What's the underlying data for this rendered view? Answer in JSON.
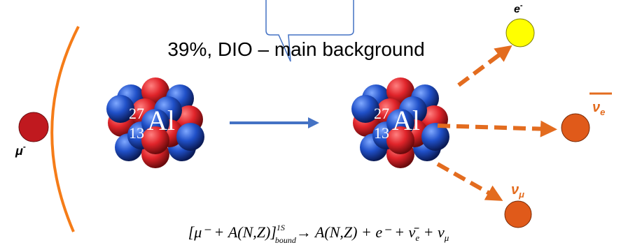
{
  "title": "39%, DIO – main background",
  "muon_label": {
    "symbol": "μ",
    "charge": "-"
  },
  "nucleus_left": {
    "mass": "27",
    "atomic": "13",
    "element": "Al"
  },
  "nucleus_right": {
    "mass": "27",
    "atomic": "13",
    "element": "Al"
  },
  "electron_label": {
    "symbol": "e",
    "charge": "-"
  },
  "antineutrino_label": {
    "symbol": "ν",
    "sub": "e"
  },
  "neutrino_label": {
    "symbol": "ν",
    "sub": "μ"
  },
  "formula": {
    "lhs": "[μ⁻ + A(N,Z)]",
    "sup": "1S",
    "sub": "bound",
    "rhs": "→ A(N,Z) + e⁻ + ν̄",
    "sub_e": "e",
    "plus_nu": " + ν",
    "sub_mu": "μ"
  }
}
